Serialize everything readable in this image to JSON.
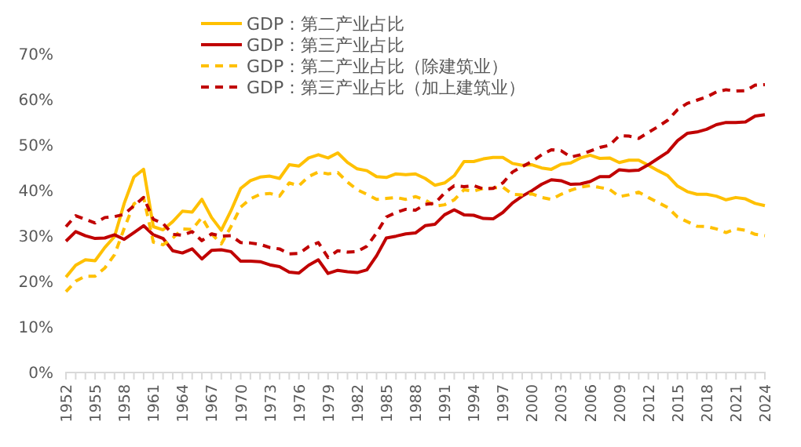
{
  "chart_data": {
    "type": "line",
    "x": [
      1952,
      1953,
      1954,
      1955,
      1956,
      1957,
      1958,
      1959,
      1960,
      1961,
      1962,
      1963,
      1964,
      1965,
      1966,
      1967,
      1968,
      1969,
      1970,
      1971,
      1972,
      1973,
      1974,
      1975,
      1976,
      1977,
      1978,
      1979,
      1980,
      1981,
      1982,
      1983,
      1984,
      1985,
      1986,
      1987,
      1988,
      1989,
      1990,
      1991,
      1992,
      1993,
      1994,
      1995,
      1996,
      1997,
      1998,
      1999,
      2000,
      2001,
      2002,
      2003,
      2004,
      2005,
      2006,
      2007,
      2008,
      2009,
      2010,
      2011,
      2012,
      2013,
      2014,
      2015,
      2016,
      2017,
      2018,
      2019,
      2020,
      2021,
      2022,
      2023,
      2024
    ],
    "xlim": [
      1952,
      2024
    ],
    "xticks": [
      1952,
      {
        "value": 1953,
        "label": null
      },
      {
        "value": 1954,
        "label": null
      },
      1955,
      {
        "value": 1956,
        "label": null
      },
      {
        "value": 1957,
        "label": null
      },
      1958,
      {
        "value": 1959,
        "label": null
      },
      {
        "value": 1960,
        "label": null
      },
      1961,
      {
        "value": 1962,
        "label": null
      },
      {
        "value": 1963,
        "label": null
      },
      1964,
      {
        "value": 1965,
        "label": null
      },
      {
        "value": 1966,
        "label": null
      },
      1967,
      {
        "value": 1968,
        "label": null
      },
      {
        "value": 1969,
        "label": null
      },
      1970,
      {
        "value": 1971,
        "label": null
      },
      {
        "value": 1972,
        "label": null
      },
      1973,
      {
        "value": 1974,
        "label": null
      },
      {
        "value": 1975,
        "label": null
      },
      1976,
      {
        "value": 1977,
        "label": null
      },
      {
        "value": 1978,
        "label": null
      },
      1979,
      {
        "value": 1980,
        "label": null
      },
      {
        "value": 1981,
        "label": null
      },
      1982,
      {
        "value": 1983,
        "label": null
      },
      {
        "value": 1984,
        "label": null
      },
      1985,
      {
        "value": 1986,
        "label": null
      },
      {
        "value": 1987,
        "label": null
      },
      1988,
      {
        "value": 1989,
        "label": null
      },
      {
        "value": 1990,
        "label": null
      },
      1991,
      {
        "value": 1992,
        "label": null
      },
      {
        "value": 1993,
        "label": null
      },
      1994,
      {
        "value": 1995,
        "label": null
      },
      {
        "value": 1996,
        "label": null
      },
      1997,
      {
        "value": 1998,
        "label": null
      },
      {
        "value": 1999,
        "label": null
      },
      2000,
      {
        "value": 2001,
        "label": null
      },
      {
        "value": 2002,
        "label": null
      },
      2003,
      {
        "value": 2004,
        "label": null
      },
      {
        "value": 2005,
        "label": null
      },
      2006,
      {
        "value": 2007,
        "label": null
      },
      {
        "value": 2008,
        "label": null
      },
      2009,
      {
        "value": 2010,
        "label": null
      },
      {
        "value": 2011,
        "label": null
      },
      2012,
      {
        "value": 2013,
        "label": null
      },
      {
        "value": 2014,
        "label": null
      },
      2015,
      {
        "value": 2016,
        "label": null
      },
      {
        "value": 2017,
        "label": null
      },
      2018,
      {
        "value": 2019,
        "label": null
      },
      {
        "value": 2020,
        "label": null
      },
      2021,
      {
        "value": 2022,
        "label": null
      },
      {
        "value": 2023,
        "label": null
      },
      2024
    ],
    "ylim": [
      0,
      70
    ],
    "yticks": [
      {
        "value": 0,
        "label": "0%"
      },
      {
        "value": 10,
        "label": "10%"
      },
      {
        "value": 20,
        "label": "20%"
      },
      {
        "value": 30,
        "label": "30%"
      },
      {
        "value": 40,
        "label": "40%"
      },
      {
        "value": 50,
        "label": "50%"
      },
      {
        "value": 60,
        "label": "60%"
      },
      {
        "value": 70,
        "label": "70%"
      }
    ],
    "grid": false,
    "legend": "top",
    "series": [
      {
        "name": "GDP：第二产业占比",
        "color": "#ffc000",
        "line_style": "solid",
        "values": [
          20.8,
          23.4,
          24.6,
          24.4,
          27.3,
          29.7,
          37.0,
          42.8,
          44.5,
          31.9,
          31.2,
          33.0,
          35.3,
          35.1,
          37.9,
          33.9,
          31.1,
          35.4,
          40.3,
          42.0,
          42.8,
          43.0,
          42.5,
          45.5,
          45.2,
          47.0,
          47.7,
          47.0,
          48.1,
          46.0,
          44.6,
          44.2,
          42.9,
          42.7,
          43.5,
          43.3,
          43.5,
          42.5,
          41.0,
          41.5,
          43.1,
          46.2,
          46.2,
          46.8,
          47.1,
          47.1,
          45.8,
          45.4,
          45.5,
          44.8,
          44.5,
          45.6,
          45.9,
          47.0,
          47.6,
          46.9,
          47.0,
          46.0,
          46.5,
          46.5,
          45.4,
          44.2,
          43.1,
          40.8,
          39.6,
          39.0,
          39.0,
          38.6,
          37.8,
          38.3,
          38.0,
          37.0,
          36.5
        ]
      },
      {
        "name": "GDP：第三产业占比",
        "color": "#c00000",
        "line_style": "solid",
        "values": [
          28.7,
          30.8,
          29.9,
          29.3,
          29.4,
          30.1,
          29.1,
          30.6,
          32.1,
          30.1,
          29.3,
          26.6,
          26.1,
          27.0,
          24.8,
          26.7,
          26.8,
          26.4,
          24.3,
          24.3,
          24.2,
          23.5,
          23.1,
          21.9,
          21.7,
          23.4,
          24.6,
          21.6,
          22.3,
          22.0,
          21.8,
          22.4,
          25.5,
          29.4,
          29.8,
          30.3,
          30.5,
          32.1,
          32.4,
          34.5,
          35.6,
          34.5,
          34.4,
          33.7,
          33.6,
          35.0,
          37.1,
          38.6,
          39.8,
          41.2,
          42.2,
          42.0,
          41.2,
          41.3,
          41.8,
          42.9,
          42.9,
          44.4,
          44.2,
          44.3,
          45.5,
          46.9,
          48.3,
          50.8,
          52.4,
          52.7,
          53.3,
          54.3,
          54.8,
          54.8,
          54.9,
          56.2,
          56.5
        ]
      },
      {
        "name": "GDP：第二产业占比（除建筑业）",
        "color": "#ffc000",
        "line_style": "dashed",
        "values": [
          17.6,
          19.9,
          21.0,
          21.0,
          22.8,
          25.7,
          31.5,
          36.9,
          38.3,
          28.5,
          27.9,
          29.4,
          31.4,
          31.3,
          33.9,
          30.3,
          28.1,
          31.9,
          36.2,
          38.0,
          39.0,
          39.2,
          38.6,
          41.5,
          40.9,
          42.9,
          43.9,
          43.5,
          43.8,
          41.7,
          40.0,
          39.0,
          37.9,
          38.1,
          38.3,
          37.9,
          38.5,
          37.8,
          36.4,
          36.7,
          37.8,
          40.0,
          39.7,
          40.3,
          40.4,
          40.6,
          39.0,
          38.9,
          39.1,
          38.3,
          37.9,
          39.0,
          39.9,
          40.6,
          40.9,
          40.5,
          40.1,
          38.5,
          38.9,
          39.5,
          38.3,
          37.2,
          36.1,
          34.0,
          33.0,
          32.0,
          31.9,
          31.4,
          30.6,
          31.4,
          31.1,
          30.2,
          29.9
        ]
      },
      {
        "name": "GDP：第三产业占比（加上建筑业）",
        "color": "#c00000",
        "line_style": "dashed",
        "values": [
          31.9,
          34.3,
          33.5,
          32.7,
          33.9,
          34.1,
          34.6,
          36.5,
          38.3,
          33.5,
          32.6,
          30.2,
          30.0,
          30.8,
          28.8,
          30.3,
          29.8,
          29.9,
          28.4,
          28.3,
          28.0,
          27.3,
          27.0,
          25.9,
          26.0,
          27.5,
          28.4,
          25.1,
          26.6,
          26.3,
          26.4,
          27.6,
          30.5,
          34.0,
          35.0,
          35.7,
          35.5,
          36.8,
          37.0,
          39.3,
          40.9,
          40.7,
          40.9,
          40.2,
          40.3,
          41.5,
          43.9,
          45.1,
          46.2,
          47.7,
          48.8,
          48.6,
          47.2,
          47.7,
          48.5,
          49.3,
          49.8,
          51.9,
          51.8,
          51.3,
          52.6,
          53.9,
          55.3,
          57.6,
          59.0,
          59.7,
          60.4,
          61.5,
          62.0,
          61.7,
          61.8,
          63.0,
          63.1
        ]
      }
    ]
  }
}
